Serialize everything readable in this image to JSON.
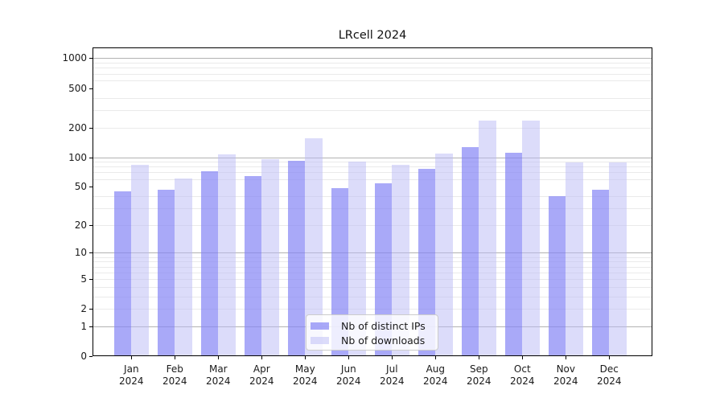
{
  "figure": {
    "title": "LRcell 2024"
  },
  "chart_data": {
    "type": "bar",
    "title": "LRcell 2024",
    "x_categories": [
      "Jan 2024",
      "Feb 2024",
      "Mar 2024",
      "Apr 2024",
      "May 2024",
      "Jun 2024",
      "Jul 2024",
      "Aug 2024",
      "Sep 2024",
      "Oct 2024",
      "Nov 2024",
      "Dec 2024"
    ],
    "x_tick_months": [
      "Jan",
      "Feb",
      "Mar",
      "Apr",
      "May",
      "Jun",
      "Jul",
      "Aug",
      "Sep",
      "Oct",
      "Nov",
      "Dec"
    ],
    "x_tick_year": "2024",
    "series": [
      {
        "name": "Nb of distinct IPs",
        "color": "rgba(132,132,245,0.7)",
        "values": [
          44,
          46,
          70,
          63,
          91,
          47,
          53,
          74,
          125,
          108,
          39,
          46
        ]
      },
      {
        "name": "Nb of downloads",
        "color": "rgba(185,185,245,0.5)",
        "values": [
          82,
          60,
          105,
          94,
          153,
          88,
          82,
          107,
          232,
          232,
          87,
          87
        ]
      }
    ],
    "yscale": "symlog (log10(1+v))",
    "ylim": [
      0,
      1300
    ],
    "yticks": [
      0,
      1,
      2,
      5,
      10,
      20,
      50,
      100,
      200,
      500,
      1000
    ],
    "ytick_major_gridlines": [
      1,
      10,
      100,
      1000
    ],
    "ytick_minor_gridlines": [
      2,
      3,
      4,
      5,
      6,
      7,
      8,
      9,
      20,
      30,
      40,
      60,
      70,
      80,
      90,
      200,
      300,
      400,
      600,
      700,
      800,
      900
    ],
    "grid": "horizontal, major + minor",
    "legend": {
      "entries": [
        "Nb of distinct IPs",
        "Nb of downloads"
      ],
      "position": "lower center"
    },
    "colors": {
      "major_grid": "#b2b2b2",
      "minor_grid": "#eaeaea",
      "axis": "#000000",
      "text": "#1a1a1a"
    }
  }
}
